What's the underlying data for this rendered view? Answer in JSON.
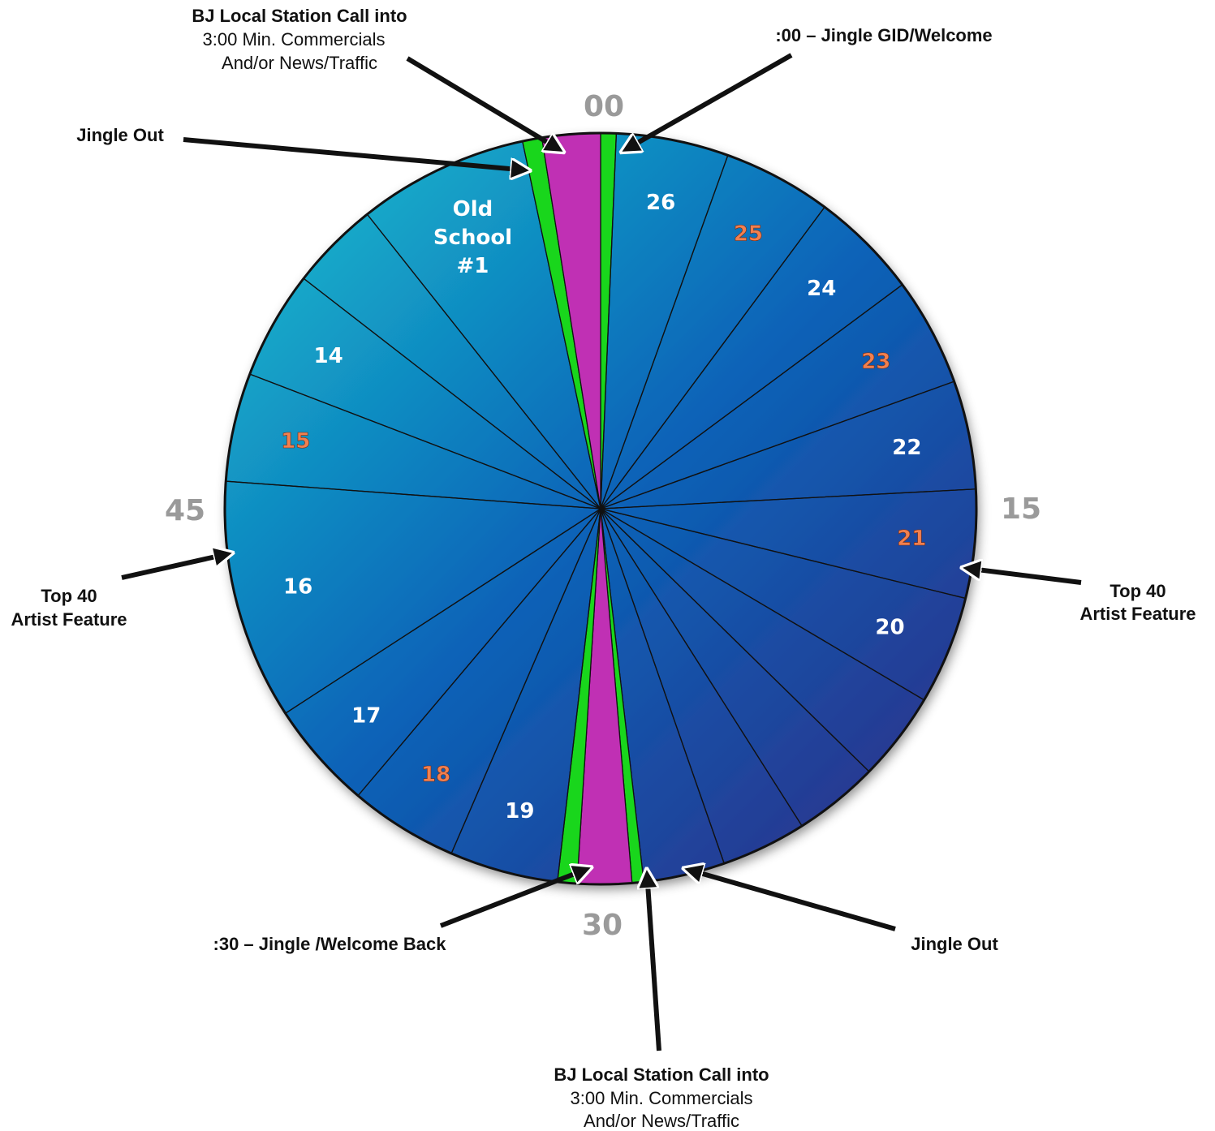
{
  "minute_marks": {
    "top": "00",
    "right": "15",
    "bottom": "30",
    "left": "45"
  },
  "segments": [
    {
      "kind": "jingle",
      "label": "",
      "start": 0.0,
      "end": 0.4
    },
    {
      "kind": "song",
      "label": "26",
      "start": 0.4,
      "end": 3.3
    },
    {
      "kind": "song",
      "label": "25",
      "start": 3.3,
      "end": 6.1,
      "highlight": true
    },
    {
      "kind": "song",
      "label": "24",
      "start": 6.1,
      "end": 8.9
    },
    {
      "kind": "song",
      "label": "23",
      "start": 8.9,
      "end": 11.7,
      "highlight": true
    },
    {
      "kind": "song",
      "label": "22",
      "start": 11.7,
      "end": 14.5
    },
    {
      "kind": "song",
      "label": "21",
      "start": 14.5,
      "end": 17.3,
      "highlight": true
    },
    {
      "kind": "song",
      "label": "20",
      "start": 17.3,
      "end": 20.1
    },
    {
      "kind": "song",
      "label": "",
      "start": 20.1,
      "end": 22.4
    },
    {
      "kind": "song",
      "label": "",
      "start": 22.4,
      "end": 24.6
    },
    {
      "kind": "song",
      "label": "",
      "start": 24.6,
      "end": 26.8
    },
    {
      "kind": "song",
      "label": "",
      "start": 26.8,
      "end": 28.9
    },
    {
      "kind": "jingle",
      "label": "",
      "start": 28.9,
      "end": 29.2
    },
    {
      "kind": "break",
      "label": "",
      "start": 29.2,
      "end": 30.6
    },
    {
      "kind": "jingle",
      "label": "",
      "start": 30.6,
      "end": 31.1
    },
    {
      "kind": "song",
      "label": "19",
      "start": 31.1,
      "end": 33.9
    },
    {
      "kind": "song",
      "label": "18",
      "start": 33.9,
      "end": 36.7,
      "highlight": true
    },
    {
      "kind": "song",
      "label": "17",
      "start": 36.7,
      "end": 39.5
    },
    {
      "kind": "song",
      "label": "16",
      "start": 39.5,
      "end": 45.7
    },
    {
      "kind": "song",
      "label": "15",
      "start": 45.7,
      "end": 48.5,
      "highlight": true
    },
    {
      "kind": "song",
      "label": "14",
      "start": 48.5,
      "end": 51.3
    },
    {
      "kind": "song",
      "label": "",
      "start": 51.3,
      "end": 53.6
    },
    {
      "kind": "song",
      "label": "Old School #1",
      "start": 53.6,
      "end": 58.0
    },
    {
      "kind": "jingle",
      "label": "",
      "start": 58.0,
      "end": 58.5
    },
    {
      "kind": "break",
      "label": "",
      "start": 58.5,
      "end": 60.0
    }
  ],
  "callouts": {
    "top_break": {
      "line1": "BJ Local Station Call into",
      "line2": "3:00 Min. Commercials",
      "line3": "And/or News/Traffic"
    },
    "top_jingle_welcome": {
      "text": ":00 – Jingle GID/Welcome"
    },
    "top_jingle_out": {
      "text": "Jingle Out"
    },
    "right_feature": {
      "line1": "Top 40",
      "line2": "Artist Feature"
    },
    "left_feature": {
      "line1": "Top 40",
      "line2": "Artist Feature"
    },
    "bottom_jingle_welcome_back": {
      "text": ":30 – Jingle /Welcome Back"
    },
    "bottom_jingle_out": {
      "text": "Jingle Out"
    },
    "bottom_break": {
      "line1": "BJ Local Station Call into",
      "line2": "3:00 Min. Commercials",
      "line3": "And/or News/Traffic"
    }
  },
  "colors": {
    "song_top": "#19b8c8",
    "song_mid": "#0a63b8",
    "song_bottom": "#2a2f8a",
    "jingle": "#19d61c",
    "break": "#c030b4",
    "label_white": "#ffffff",
    "label_highlight": "#f08050",
    "minute_mark": "#9a9a9a"
  }
}
